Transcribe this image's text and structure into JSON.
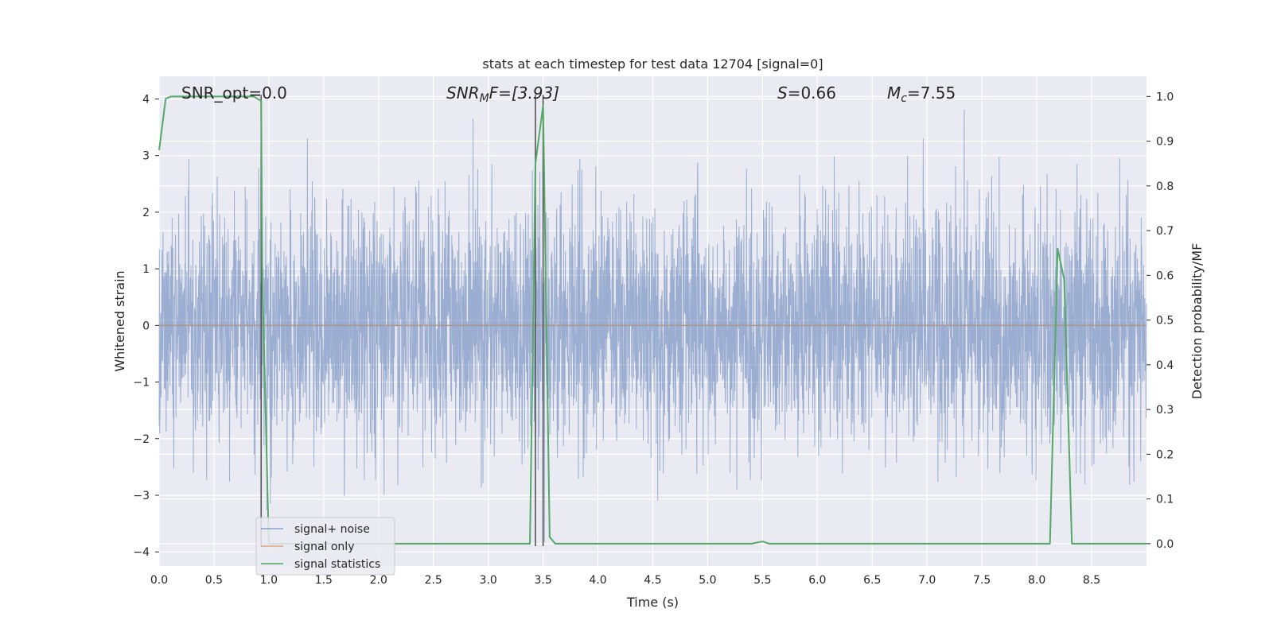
{
  "chart_data": {
    "type": "line",
    "title": "stats at each timestep for test data 12704 [signal=0]",
    "xlabel": "Time (s)",
    "ylabel": "Whitened strain",
    "ylabel_right": "Detection probability/MF",
    "xlim": [
      0,
      9.0
    ],
    "ylim": [
      -4.25,
      4.4
    ],
    "ylim_right": [
      -0.05,
      1.045
    ],
    "x_ticks": [
      0.0,
      0.5,
      1.0,
      1.5,
      2.0,
      2.5,
      3.0,
      3.5,
      4.0,
      4.5,
      5.0,
      5.5,
      6.0,
      6.5,
      7.0,
      7.5,
      8.0,
      8.5
    ],
    "x_tick_labels": [
      "0.0",
      "0.5",
      "1.0",
      "1.5",
      "2.0",
      "2.5",
      "3.0",
      "3.5",
      "4.0",
      "4.5",
      "5.0",
      "5.5",
      "6.0",
      "6.5",
      "7.0",
      "7.5",
      "8.0",
      "8.5"
    ],
    "y_ticks": [
      4,
      3,
      2,
      1,
      0,
      -1,
      -2,
      -3,
      -4
    ],
    "y_tick_labels": [
      "4",
      "3",
      "2",
      "1",
      "0",
      "−1",
      "−2",
      "−3",
      "−4"
    ],
    "y_right_ticks": [
      1.0,
      0.9,
      0.8,
      0.7,
      0.6,
      0.5,
      0.4,
      0.3,
      0.2,
      0.1,
      0.0
    ],
    "y_right_tick_labels": [
      "1.0",
      "0.9",
      "0.8",
      "0.7",
      "0.6",
      "0.5",
      "0.4",
      "0.3",
      "0.2",
      "0.1",
      "0.0"
    ],
    "grid": true,
    "legend_position": "lower-left",
    "annotations": {
      "snr_opt": "SNR_opt=0.0",
      "snr_mf_prefix": "SNR",
      "snr_mf_sub": "M",
      "snr_mf_suffix": "F=[3.93]",
      "s_var": "S",
      "s_value": "=0.66",
      "mc_var": "M",
      "mc_sub": "c",
      "mc_value": "=7.55"
    },
    "vertical_lines_x": [
      0.93,
      3.43,
      3.5
    ],
    "series": [
      {
        "name": "signal+ noise",
        "color": "#4c72b0",
        "kind": "noise",
        "sigma": 1.05,
        "samples": 4096,
        "seed": 12704
      },
      {
        "name": "signal only",
        "color": "#dd8452",
        "kind": "constant",
        "x": [
          0.0,
          9.0
        ],
        "y": [
          0.0,
          0.0
        ]
      },
      {
        "name": "signal statistics",
        "color": "#55a868",
        "kind": "line",
        "axis": "right",
        "x": [
          0.0,
          0.06,
          0.11,
          0.2,
          0.3,
          0.4,
          0.5,
          0.6,
          0.7,
          0.8,
          0.86,
          0.93,
          0.94,
          1.0,
          1.1,
          1.5,
          2.0,
          2.5,
          3.0,
          3.38,
          3.43,
          3.5,
          3.56,
          3.61,
          4.0,
          4.5,
          5.0,
          5.4,
          5.5,
          5.56,
          6.0,
          6.5,
          7.0,
          7.5,
          8.0,
          8.12,
          8.19,
          8.25,
          8.32,
          8.5,
          9.0
        ],
        "y": [
          0.88,
          0.995,
          1.0,
          1.0,
          1.0,
          1.0,
          1.0,
          1.0,
          1.0,
          1.0,
          1.0,
          0.99,
          0.6,
          0.0,
          0.0,
          0.0,
          0.0,
          0.0,
          0.0,
          0.0,
          0.85,
          0.98,
          0.015,
          0.0,
          0.0,
          0.0,
          0.0,
          0.0,
          0.005,
          0.0,
          0.0,
          0.0,
          0.0,
          0.0,
          0.0,
          0.0,
          0.66,
          0.59,
          0.0,
          0.0,
          0.0
        ]
      }
    ]
  }
}
